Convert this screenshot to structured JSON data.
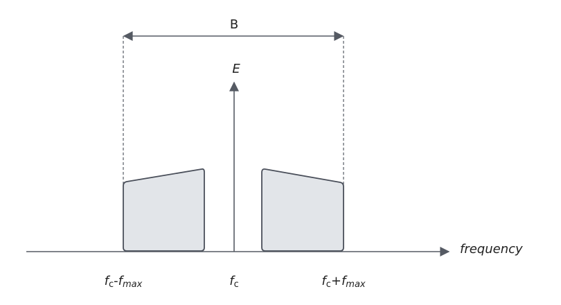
{
  "bandwidth_label": "B",
  "vertical_axis_label": "E",
  "horizontal_axis_label": "frequency",
  "frequency_labels": {
    "lower": [
      "f",
      "c",
      "-",
      "f",
      "max"
    ],
    "center": [
      "f",
      "c"
    ],
    "upper": [
      "f",
      "c",
      "+",
      "f",
      "max"
    ]
  }
}
